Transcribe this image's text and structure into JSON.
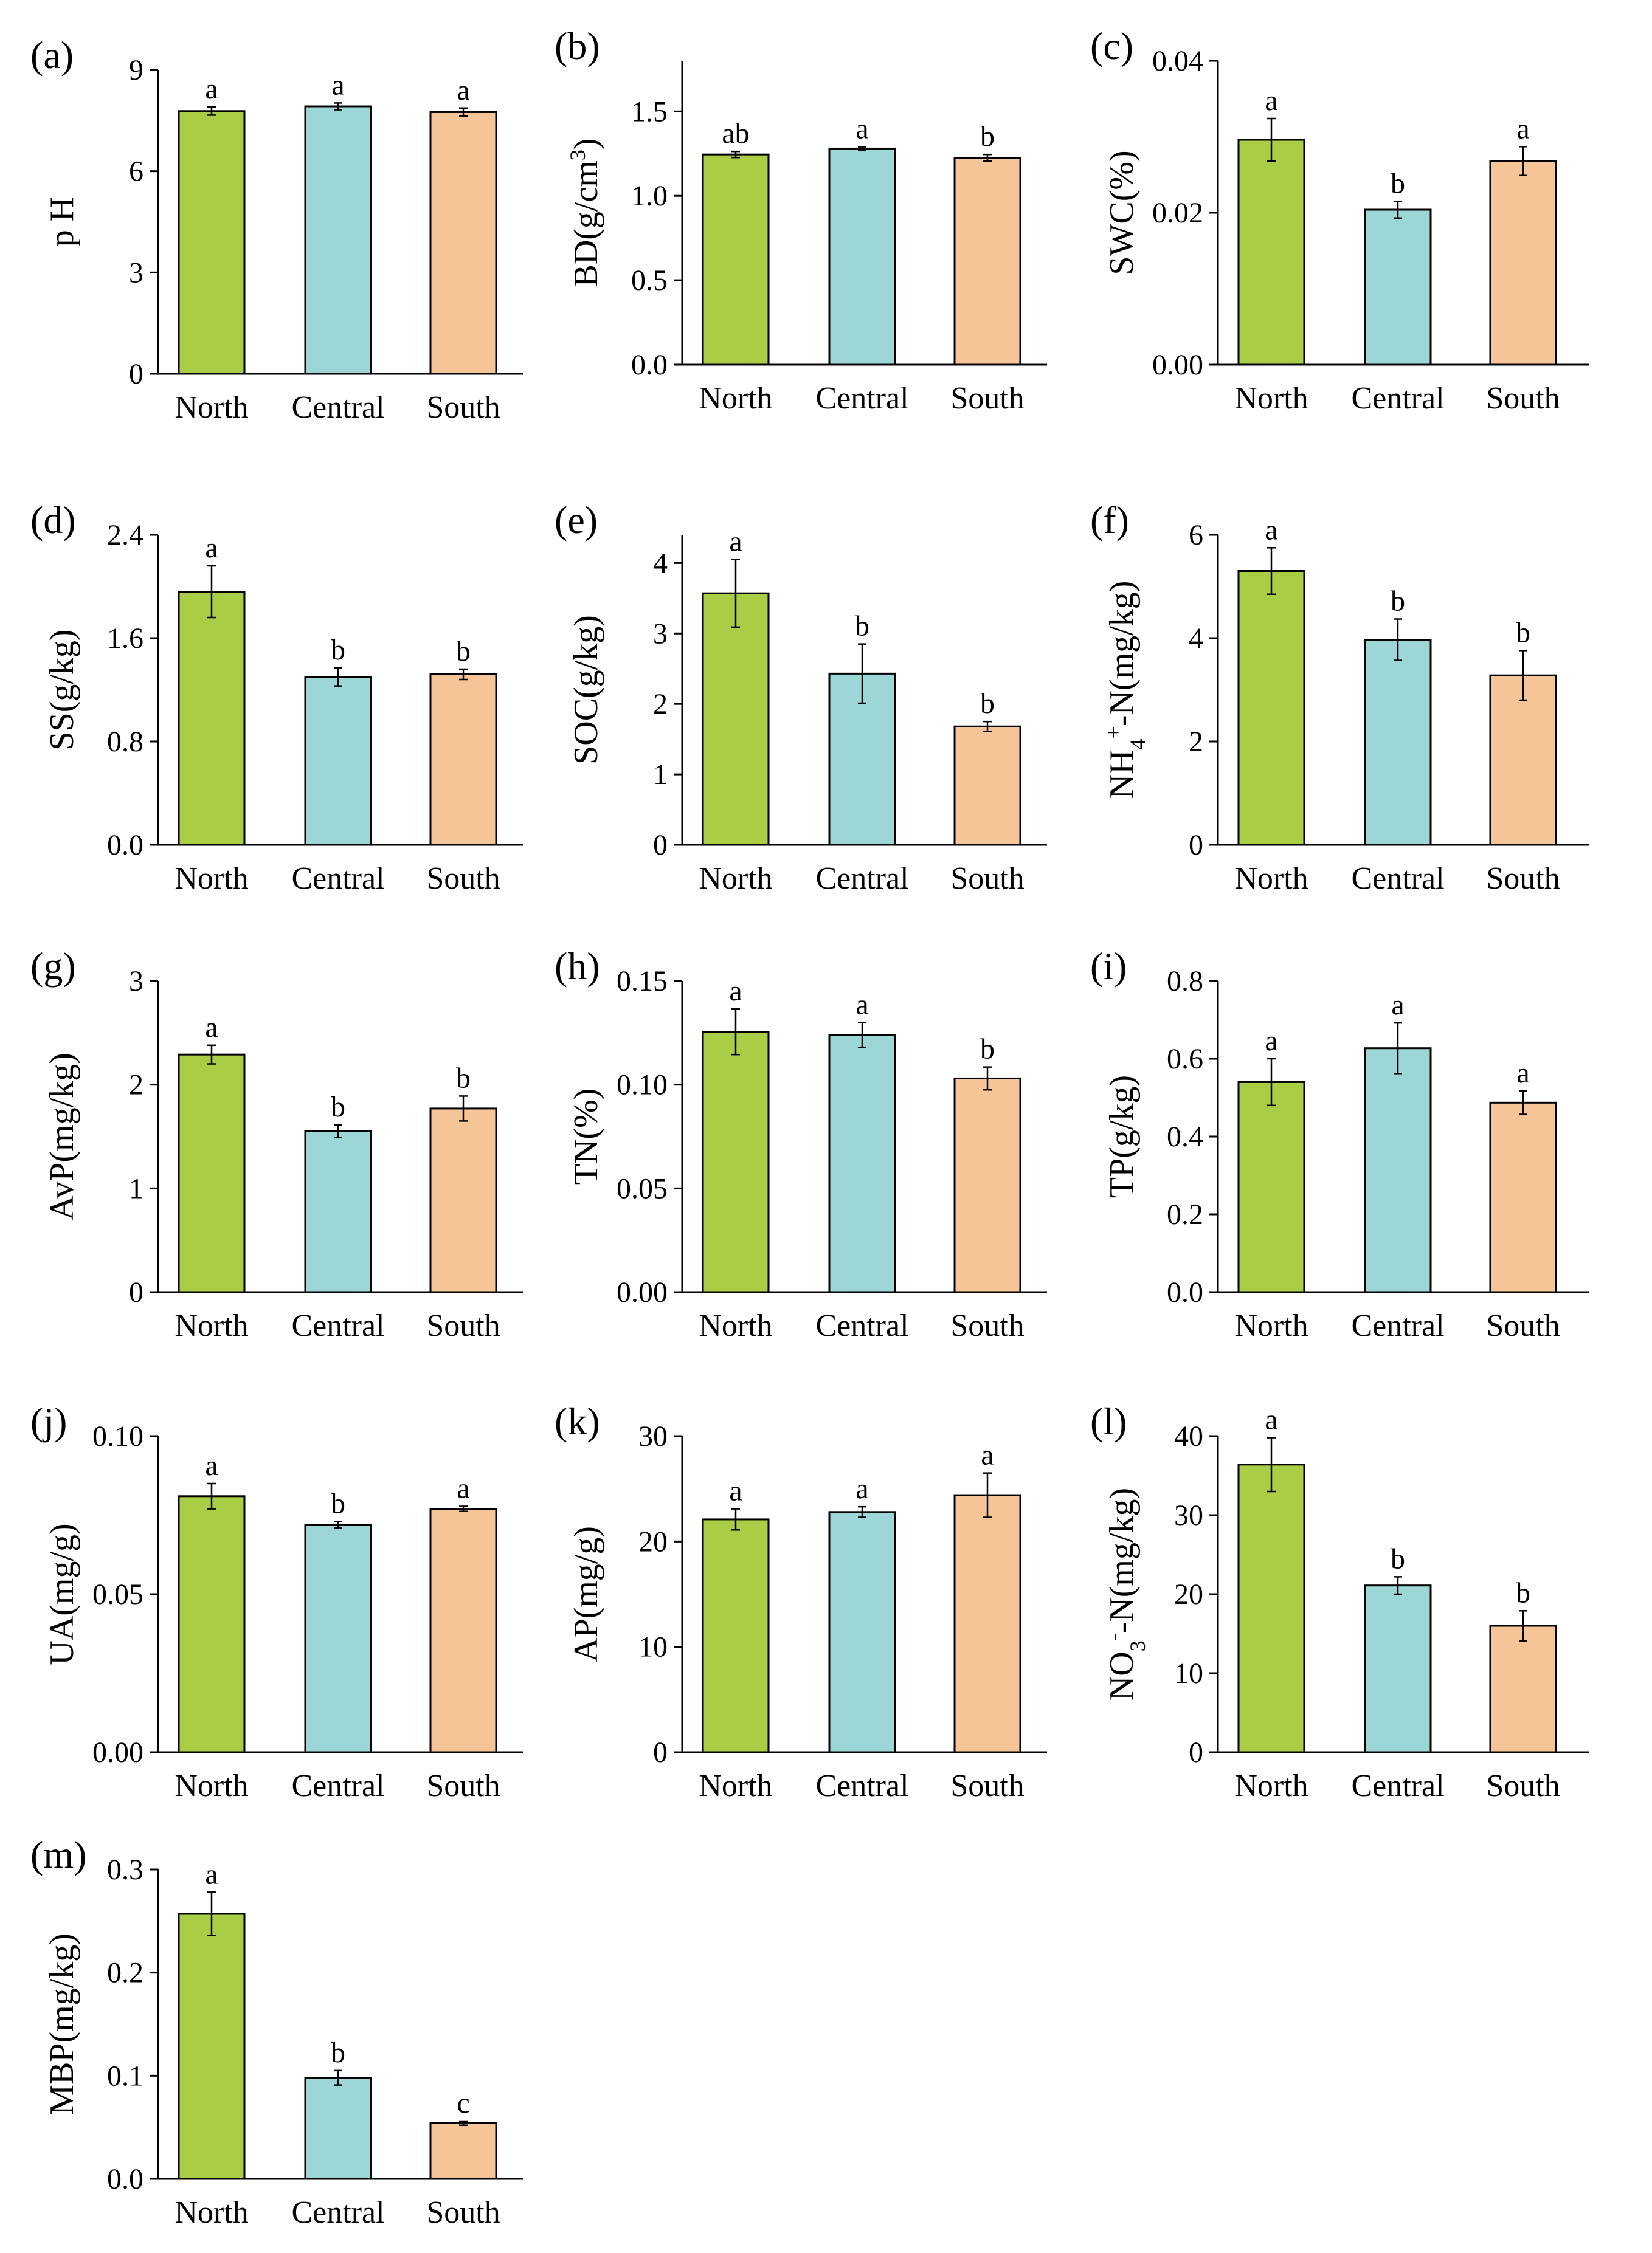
{
  "colors": {
    "North": "#A9CD45",
    "Central": "#9CD6D6",
    "South": "#F5C598"
  },
  "chart_data": [
    {
      "panel_label": "(a)",
      "type": "bar",
      "ylabel": "p H",
      "categories": [
        "North",
        "Central",
        "South"
      ],
      "values": [
        7.78,
        7.92,
        7.75
      ],
      "errors": [
        0.12,
        0.1,
        0.12
      ],
      "letters": [
        "a",
        "a",
        "a"
      ],
      "ylim": [
        0,
        9
      ],
      "yticks": [
        "0",
        "3",
        "6",
        "9"
      ],
      "ytick_values": [
        0,
        3,
        6,
        9
      ]
    },
    {
      "panel_label": "(b)",
      "type": "bar",
      "ylabel": "BD(g/cm3)",
      "categories": [
        "North",
        "Central",
        "South"
      ],
      "values": [
        1.245,
        1.28,
        1.225
      ],
      "errors": [
        0.018,
        0.01,
        0.02
      ],
      "letters": [
        "ab",
        "a",
        "b"
      ],
      "ylim": [
        0,
        1.8
      ],
      "yticks": [
        "0.0",
        "0.5",
        "1.0",
        "1.5"
      ],
      "ytick_values": [
        0,
        0.5,
        1.0,
        1.5
      ]
    },
    {
      "panel_label": "(c)",
      "type": "bar",
      "ylabel": "SWC(%)",
      "categories": [
        "North",
        "Central",
        "South"
      ],
      "values": [
        0.0296,
        0.0204,
        0.0268
      ],
      "errors": [
        0.0028,
        0.0011,
        0.0019
      ],
      "letters": [
        "a",
        "b",
        "a"
      ],
      "ylim": [
        0,
        0.04
      ],
      "yticks": [
        "0.00",
        "0.02",
        "0.04"
      ],
      "ytick_values": [
        0,
        0.02,
        0.04
      ]
    },
    {
      "panel_label": "(d)",
      "type": "bar",
      "ylabel": "SS(g/kg)",
      "categories": [
        "North",
        "Central",
        "South"
      ],
      "values": [
        1.96,
        1.3,
        1.32
      ],
      "errors": [
        0.2,
        0.07,
        0.04
      ],
      "letters": [
        "a",
        "b",
        "b"
      ],
      "ylim": [
        0,
        2.4
      ],
      "yticks": [
        "0.0",
        "0.8",
        "1.6",
        "2.4"
      ],
      "ytick_values": [
        0,
        0.8,
        1.6,
        2.4
      ]
    },
    {
      "panel_label": "(e)",
      "type": "bar",
      "ylabel": "SOC(g/kg)",
      "categories": [
        "North",
        "Central",
        "South"
      ],
      "values": [
        3.57,
        2.43,
        1.68
      ],
      "errors": [
        0.48,
        0.42,
        0.07
      ],
      "letters": [
        "a",
        "b",
        "b"
      ],
      "ylim": [
        0,
        4.4
      ],
      "yticks": [
        "0",
        "1",
        "2",
        "3",
        "4"
      ],
      "ytick_values": [
        0,
        1,
        2,
        3,
        4
      ]
    },
    {
      "panel_label": "(f)",
      "type": "bar",
      "ylabel": "NH4+-N(mg/kg)",
      "categories": [
        "North",
        "Central",
        "South"
      ],
      "values": [
        5.3,
        3.97,
        3.28
      ],
      "errors": [
        0.45,
        0.4,
        0.48
      ],
      "letters": [
        "a",
        "b",
        "b"
      ],
      "ylim": [
        0,
        6
      ],
      "yticks": [
        "0",
        "2",
        "4",
        "6"
      ],
      "ytick_values": [
        0,
        2,
        4,
        6
      ]
    },
    {
      "panel_label": "(g)",
      "type": "bar",
      "ylabel": "AvP(mg/kg)",
      "categories": [
        "North",
        "Central",
        "South"
      ],
      "values": [
        2.29,
        1.55,
        1.77
      ],
      "errors": [
        0.09,
        0.06,
        0.12
      ],
      "letters": [
        "a",
        "b",
        "b"
      ],
      "ylim": [
        0,
        3
      ],
      "yticks": [
        "0",
        "1",
        "2",
        "3"
      ],
      "ytick_values": [
        0,
        1,
        2,
        3
      ]
    },
    {
      "panel_label": "(h)",
      "type": "bar",
      "ylabel": "TN(%)",
      "categories": [
        "North",
        "Central",
        "South"
      ],
      "values": [
        0.1255,
        0.124,
        0.103
      ],
      "errors": [
        0.011,
        0.006,
        0.0055
      ],
      "letters": [
        "a",
        "a",
        "b"
      ],
      "ylim": [
        0,
        0.15
      ],
      "yticks": [
        "0.00",
        "0.05",
        "0.10",
        "0.15"
      ],
      "ytick_values": [
        0,
        0.05,
        0.1,
        0.15
      ]
    },
    {
      "panel_label": "(i)",
      "type": "bar",
      "ylabel": "TP(g/kg)",
      "categories": [
        "North",
        "Central",
        "South"
      ],
      "values": [
        0.54,
        0.627,
        0.487
      ],
      "errors": [
        0.06,
        0.065,
        0.03
      ],
      "letters": [
        "a",
        "a",
        "a"
      ],
      "ylim": [
        0,
        0.8
      ],
      "yticks": [
        "0.0",
        "0.2",
        "0.4",
        "0.6",
        "0.8"
      ],
      "ytick_values": [
        0,
        0.2,
        0.4,
        0.6,
        0.8
      ]
    },
    {
      "panel_label": "(j)",
      "type": "bar",
      "ylabel": "UA(mg/g)",
      "categories": [
        "North",
        "Central",
        "South"
      ],
      "values": [
        0.081,
        0.072,
        0.077
      ],
      "errors": [
        0.004,
        0.001,
        0.0008
      ],
      "letters": [
        "a",
        "b",
        "a"
      ],
      "ylim": [
        0,
        0.1
      ],
      "yticks": [
        "0.00",
        "0.05",
        "0.10"
      ],
      "ytick_values": [
        0,
        0.05,
        0.1
      ]
    },
    {
      "panel_label": "(k)",
      "type": "bar",
      "ylabel": "AP(mg/g)",
      "categories": [
        "North",
        "Central",
        "South"
      ],
      "values": [
        22.1,
        22.8,
        24.4
      ],
      "errors": [
        1.0,
        0.5,
        2.1
      ],
      "letters": [
        "a",
        "a",
        "a"
      ],
      "ylim": [
        0,
        30
      ],
      "yticks": [
        "0",
        "10",
        "20",
        "30"
      ],
      "ytick_values": [
        0,
        10,
        20,
        30
      ]
    },
    {
      "panel_label": "(l)",
      "type": "bar",
      "ylabel": "NO3--N(mg/kg)",
      "categories": [
        "North",
        "Central",
        "South"
      ],
      "values": [
        36.4,
        21.1,
        16.0
      ],
      "errors": [
        3.4,
        1.1,
        1.9
      ],
      "letters": [
        "a",
        "b",
        "b"
      ],
      "ylim": [
        0,
        40
      ],
      "yticks": [
        "0",
        "10",
        "20",
        "30",
        "40"
      ],
      "ytick_values": [
        0,
        10,
        20,
        30,
        40
      ]
    },
    {
      "panel_label": "(m)",
      "type": "bar",
      "ylabel": "MBP(mg/kg)",
      "categories": [
        "North",
        "Central",
        "South"
      ],
      "values": [
        0.257,
        0.098,
        0.054
      ],
      "errors": [
        0.021,
        0.007,
        0.002
      ],
      "letters": [
        "a",
        "b",
        "c"
      ],
      "ylim": [
        0,
        0.3
      ],
      "yticks": [
        "0.0",
        "0.1",
        "0.2",
        "0.3"
      ],
      "ytick_values": [
        0,
        0.1,
        0.2,
        0.3
      ]
    }
  ]
}
